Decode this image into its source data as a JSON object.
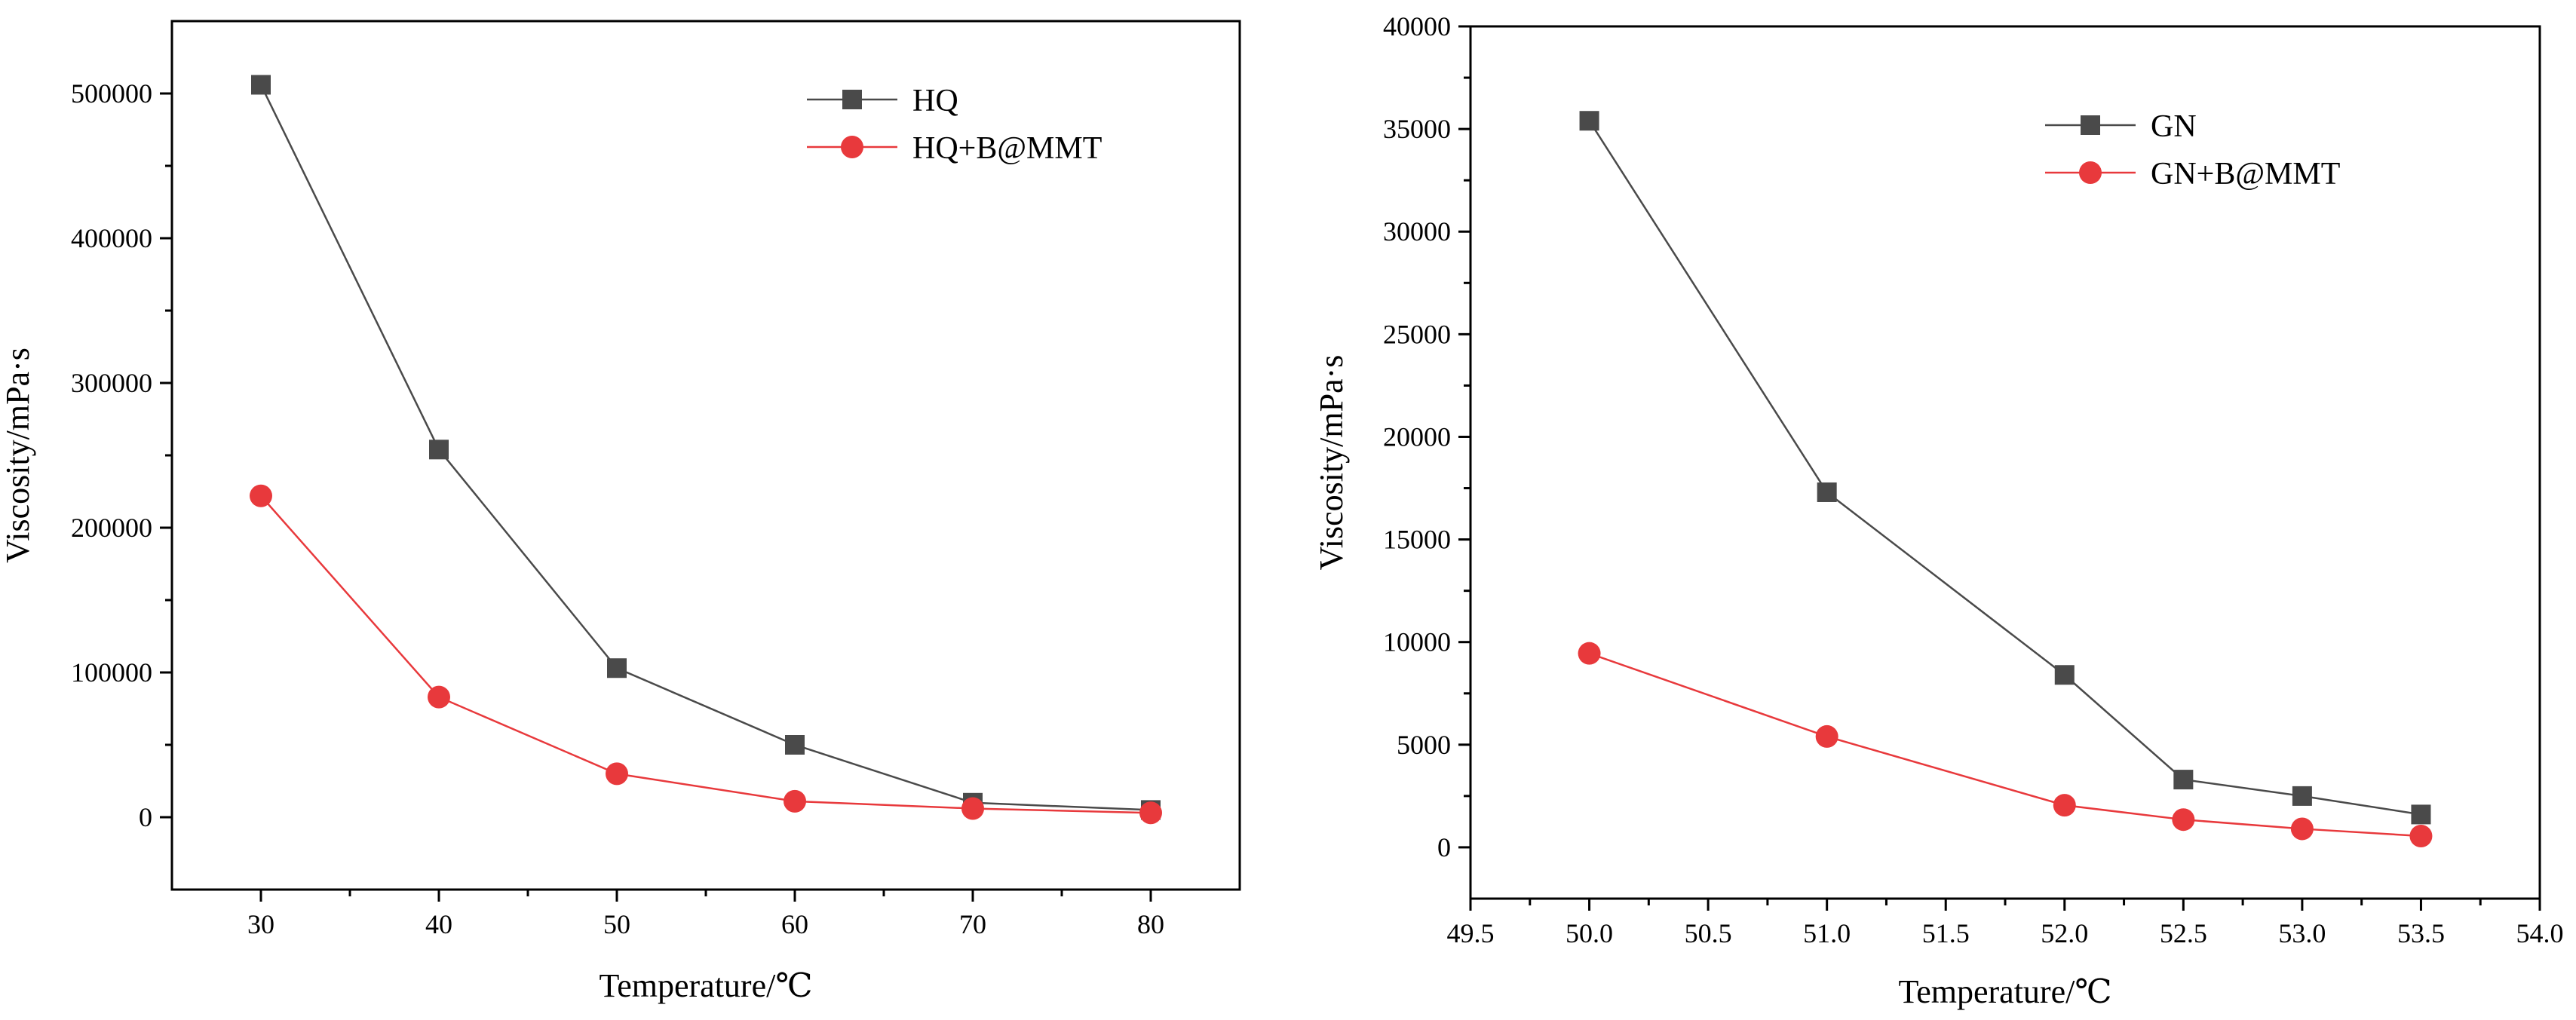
{
  "chart_data": [
    {
      "type": "line",
      "title": "",
      "xlabel": "Temperature/℃",
      "ylabel": "Viscosity/mPa·s",
      "xlim": [
        25,
        85
      ],
      "ylim": [
        -50000,
        550000
      ],
      "x_ticks": [
        30,
        40,
        50,
        60,
        70,
        80
      ],
      "x_tick_labels": [
        "30",
        "40",
        "50",
        "60",
        "70",
        "80"
      ],
      "y_ticks": [
        0,
        100000,
        200000,
        300000,
        400000,
        500000
      ],
      "y_tick_labels": [
        "0",
        "100000",
        "200000",
        "300000",
        "400000",
        "500000"
      ],
      "grid": false,
      "legend_position": "top-right",
      "series": [
        {
          "name": "HQ",
          "marker": "square",
          "color": "#4a4a4a",
          "x": [
            30,
            40,
            50,
            60,
            70,
            80
          ],
          "values": [
            506000,
            254000,
            103000,
            50000,
            10000,
            5000
          ]
        },
        {
          "name": "HQ+B@MMT",
          "marker": "circle",
          "color": "#e8393c",
          "x": [
            30,
            40,
            50,
            60,
            70,
            80
          ],
          "values": [
            222000,
            83000,
            30000,
            11000,
            6000,
            3000
          ]
        }
      ]
    },
    {
      "type": "line",
      "title": "",
      "xlabel": "Temperature/℃",
      "ylabel": "Viscosity/mPa·s",
      "xlim": [
        49.5,
        54.0
      ],
      "ylim": [
        -2500,
        40000
      ],
      "x_ticks": [
        49.5,
        50.0,
        50.5,
        51.0,
        51.5,
        52.0,
        52.5,
        53.0,
        53.5,
        54.0
      ],
      "x_tick_labels": [
        "49.5",
        "50.0",
        "50.5",
        "51.0",
        "51.5",
        "52.0",
        "52.5",
        "53.0",
        "53.5",
        "54.0"
      ],
      "y_ticks": [
        0,
        5000,
        10000,
        15000,
        20000,
        25000,
        30000,
        35000,
        40000
      ],
      "y_tick_labels": [
        "0",
        "5000",
        "10000",
        "15000",
        "20000",
        "25000",
        "30000",
        "35000",
        "40000"
      ],
      "grid": false,
      "legend_position": "top-right",
      "series": [
        {
          "name": "GN",
          "marker": "square",
          "color": "#4a4a4a",
          "x": [
            50.0,
            51.0,
            52.0,
            52.5,
            53.0,
            53.5
          ],
          "values": [
            35400,
            17300,
            8400,
            3300,
            2500,
            1600
          ]
        },
        {
          "name": "GN+B@MMT",
          "marker": "circle",
          "color": "#e8393c",
          "x": [
            50.0,
            51.0,
            52.0,
            52.5,
            53.0,
            53.5
          ],
          "values": [
            9450,
            5400,
            2050,
            1350,
            900,
            550
          ]
        }
      ]
    }
  ]
}
